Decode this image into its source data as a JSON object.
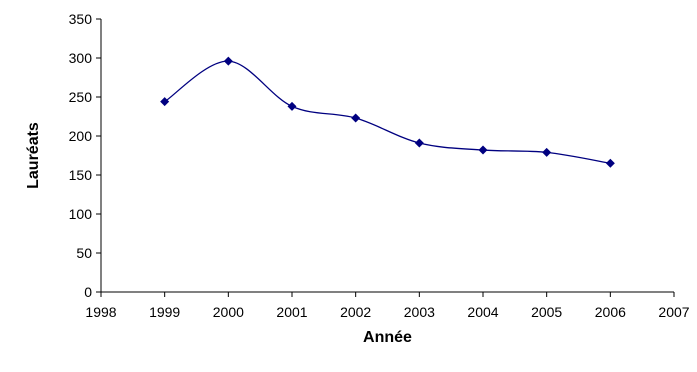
{
  "chart_data": {
    "type": "scatter",
    "xlabel": "Année",
    "ylabel": "Lauréats",
    "xlim": [
      1998,
      2007
    ],
    "ylim": [
      0,
      350
    ],
    "x_ticks": [
      1998,
      1999,
      2000,
      2001,
      2002,
      2003,
      2004,
      2005,
      2006,
      2007
    ],
    "y_ticks": [
      0,
      50,
      100,
      150,
      200,
      250,
      300,
      350
    ],
    "smoothed_line": true,
    "marker": "diamond",
    "grid": false,
    "legend": "none",
    "series": [
      {
        "color": "#000080",
        "x": [
          1999,
          2000,
          2001,
          2002,
          2003,
          2004,
          2005,
          2006
        ],
        "y": [
          244,
          296,
          238,
          223,
          191,
          182,
          179,
          165
        ]
      }
    ]
  }
}
